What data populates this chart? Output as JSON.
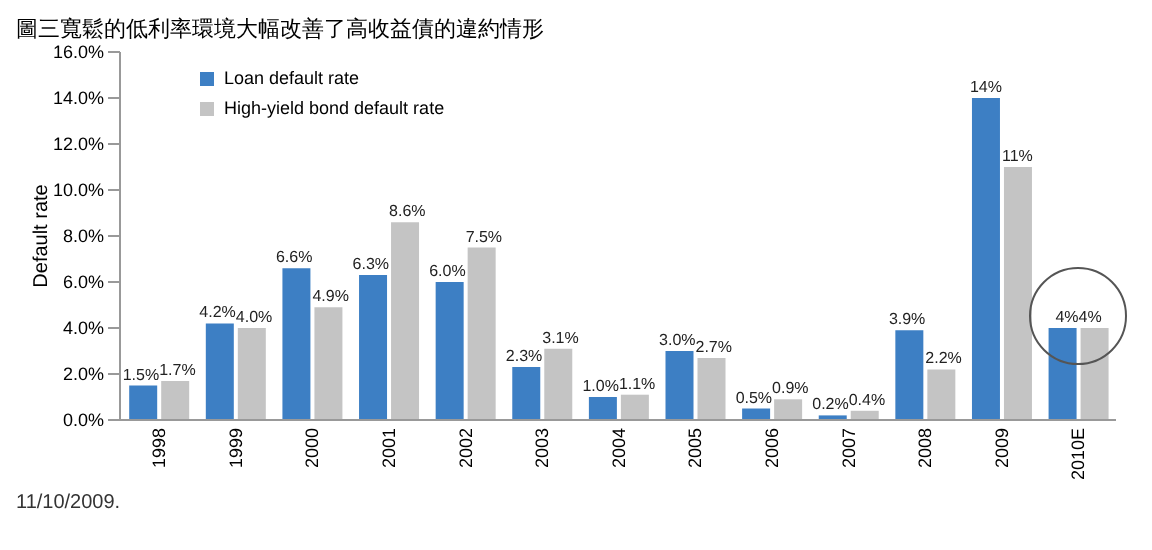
{
  "chart_data": {
    "type": "bar",
    "title": "圖三寬鬆的低利率環境大幅改善了高收益債的違約情形",
    "ylabel": "Default rate",
    "categories": [
      "1998",
      "1999",
      "2000",
      "2001",
      "2002",
      "2003",
      "2004",
      "2005",
      "2006",
      "2007",
      "2008",
      "2009",
      "2010E"
    ],
    "series": [
      {
        "name": "Loan default rate",
        "color": "#3d7fc4",
        "values": [
          1.5,
          4.2,
          6.6,
          6.3,
          6.0,
          2.3,
          1.0,
          3.0,
          0.5,
          0.2,
          3.9,
          14,
          4
        ],
        "value_labels": [
          "1.5%",
          "4.2%",
          "6.6%",
          "6.3%",
          "6.0%",
          "2.3%",
          "1.0%",
          "3.0%",
          "0.5%",
          "0.2%",
          "3.9%",
          "14%",
          "4%"
        ]
      },
      {
        "name": "High-yield bond default rate",
        "color": "#c4c4c4",
        "values": [
          1.7,
          4.0,
          4.9,
          8.6,
          7.5,
          3.1,
          1.1,
          2.7,
          0.9,
          0.4,
          2.2,
          11,
          4
        ],
        "value_labels": [
          "1.7%",
          "4.0%",
          "4.9%",
          "8.6%",
          "7.5%",
          "3.1%",
          "1.1%",
          "2.7%",
          "0.9%",
          "0.4%",
          "2.2%",
          "11%",
          "4%"
        ]
      }
    ],
    "ylim": [
      0,
      16
    ],
    "yticks": [
      {
        "value": 0,
        "label": "0.0%"
      },
      {
        "value": 2,
        "label": "2.0%"
      },
      {
        "value": 4,
        "label": "4.0%"
      },
      {
        "value": 6,
        "label": "6.0%"
      },
      {
        "value": 8,
        "label": "8.0%"
      },
      {
        "value": 10,
        "label": "10.0%"
      },
      {
        "value": 12,
        "label": "12.0%"
      },
      {
        "value": 14,
        "label": "14.0%"
      },
      {
        "value": 16,
        "label": "16.0%"
      }
    ],
    "grid": false,
    "legend": "top left",
    "annotations": [
      "11/10/2009."
    ]
  }
}
